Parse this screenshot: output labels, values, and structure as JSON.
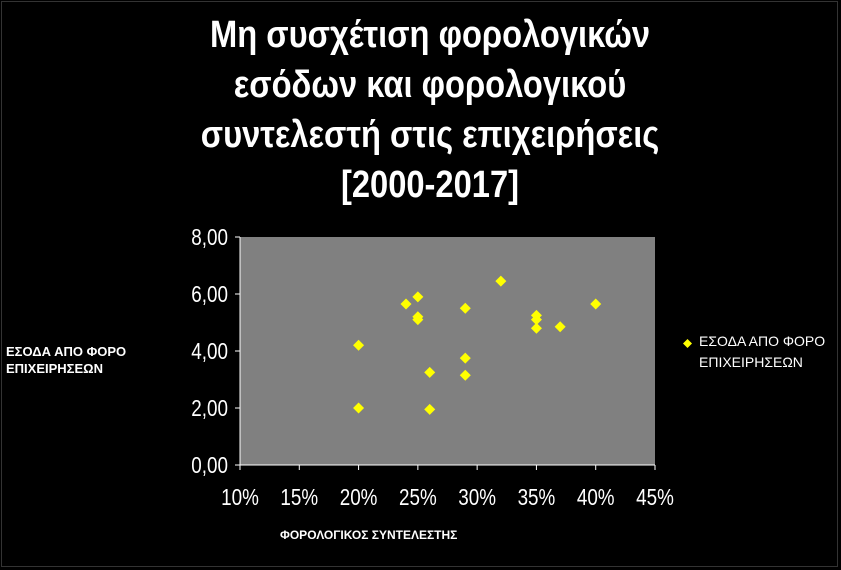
{
  "chart_data": {
    "type": "scatter",
    "title_lines": [
      "Μη συσχέτιση φορολογικών",
      "εσόδων και φορολογικού",
      "συντελεστή στις επιχειρήσεις",
      "[2000-2017]"
    ],
    "xlabel": "ΦΟΡΟΛΟΓΙΚΟΣ ΣΥΝΤΕΛΕΣΤΗΣ",
    "ylabel": "ΕΣΟΔΑ ΑΠΟ ΦΟΡΟ ΕΠΙΧΕΙΡΗΣΕΩΝ",
    "xlim": [
      0.1,
      0.45
    ],
    "ylim": [
      0,
      8
    ],
    "x_ticks": [
      0.1,
      0.15,
      0.2,
      0.25,
      0.3,
      0.35,
      0.4,
      0.45
    ],
    "x_tick_labels": [
      "10%",
      "15%",
      "20%",
      "25%",
      "30%",
      "35%",
      "40%",
      "45%"
    ],
    "y_ticks": [
      0,
      2,
      4,
      6,
      8
    ],
    "y_tick_labels": [
      "0,00",
      "2,00",
      "4,00",
      "6,00",
      "8,00"
    ],
    "grid": false,
    "legend_position": "right",
    "plot_background": "#808080",
    "marker_color": "#ffff00",
    "marker": "diamond",
    "series": [
      {
        "name": "ΕΣΟΔΑ ΑΠΟ ΦΟΡΟ ΕΠΙΧΕΙΡΗΣΕΩΝ",
        "points": [
          {
            "x": 0.2,
            "y": 4.2
          },
          {
            "x": 0.2,
            "y": 2.0
          },
          {
            "x": 0.24,
            "y": 5.65
          },
          {
            "x": 0.25,
            "y": 5.9
          },
          {
            "x": 0.25,
            "y": 5.2
          },
          {
            "x": 0.25,
            "y": 5.1
          },
          {
            "x": 0.26,
            "y": 3.25
          },
          {
            "x": 0.26,
            "y": 1.95
          },
          {
            "x": 0.29,
            "y": 5.5
          },
          {
            "x": 0.29,
            "y": 3.75
          },
          {
            "x": 0.29,
            "y": 3.15
          },
          {
            "x": 0.32,
            "y": 6.45
          },
          {
            "x": 0.35,
            "y": 5.25
          },
          {
            "x": 0.35,
            "y": 5.1
          },
          {
            "x": 0.35,
            "y": 4.8
          },
          {
            "x": 0.37,
            "y": 4.85
          },
          {
            "x": 0.4,
            "y": 5.65
          }
        ]
      }
    ]
  }
}
